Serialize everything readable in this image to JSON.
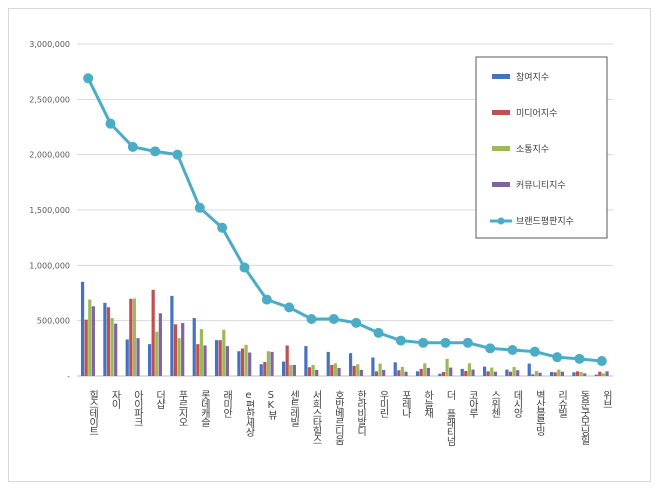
{
  "chart_data": {
    "type": "bar",
    "categories": [
      "힐스테이트",
      "자이",
      "아이파크",
      "더샵",
      "푸르지오",
      "롯데캐슬",
      "래미안",
      "e편한세상",
      "SK뷰",
      "센트레빌",
      "서희스타힐스",
      "호반베르디움",
      "한라비발디",
      "우미린",
      "포레나",
      "하늘채",
      "더 플래티넘",
      "코아루",
      "스위첸",
      "데시앙",
      "벽산블루밍",
      "리슈빌",
      "동문굿모닝힐",
      "위브"
    ],
    "ylim": [
      0,
      3000000
    ],
    "yticks": [
      0,
      500000,
      1000000,
      1500000,
      2000000,
      2500000,
      3000000
    ],
    "ytick_labels": [
      "-",
      "500,000",
      "1,000,000",
      "1,500,000",
      "2,000,000",
      "2,500,000",
      "3,000,000"
    ],
    "grid": true,
    "legend_position": "right",
    "series": [
      {
        "name": "참여지수",
        "type": "bar",
        "color": "#4472c4",
        "values": [
          851000,
          661000,
          330000,
          288000,
          724000,
          524000,
          324000,
          224000,
          106000,
          130000,
          270000,
          218000,
          206000,
          167000,
          124000,
          42000,
          21000,
          64000,
          85000,
          58000,
          112000,
          36000,
          33000,
          12000
        ]
      },
      {
        "name": "미디어지수",
        "type": "bar",
        "color": "#c0504d",
        "values": [
          509000,
          621000,
          697000,
          779000,
          467000,
          288000,
          324000,
          248000,
          127000,
          276000,
          79000,
          100000,
          91000,
          42000,
          52000,
          64000,
          36000,
          45000,
          42000,
          39000,
          15000,
          33000,
          42000,
          39000
        ]
      },
      {
        "name": "소통지수",
        "type": "bar",
        "color": "#9bbb59",
        "values": [
          691000,
          524000,
          700000,
          400000,
          342000,
          424000,
          418000,
          282000,
          224000,
          100000,
          100000,
          115000,
          106000,
          112000,
          82000,
          115000,
          155000,
          115000,
          76000,
          82000,
          45000,
          58000,
          36000,
          24000
        ]
      },
      {
        "name": "커뮤니티지수",
        "type": "bar",
        "color": "#8064a2",
        "values": [
          630000,
          473000,
          342000,
          567000,
          479000,
          276000,
          270000,
          212000,
          218000,
          100000,
          55000,
          73000,
          55000,
          55000,
          39000,
          73000,
          76000,
          58000,
          39000,
          52000,
          30000,
          39000,
          24000,
          42000
        ]
      },
      {
        "name": "브랜드평판지수",
        "type": "line",
        "color": "#4bacc6",
        "values": [
          2690000,
          2280000,
          2070000,
          2030000,
          2000000,
          1520000,
          1340000,
          980000,
          690000,
          620000,
          515000,
          515000,
          480000,
          390000,
          320000,
          300000,
          300000,
          300000,
          250000,
          235000,
          220000,
          170000,
          155000,
          135000
        ]
      }
    ]
  }
}
